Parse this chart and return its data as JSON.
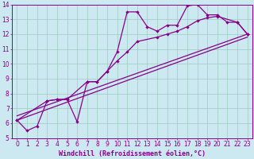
{
  "background_color": "#cce8f0",
  "plot_bg_color": "#cce8f0",
  "grid_color": "#99ccbb",
  "line_color": "#880088",
  "marker": "D",
  "markersize": 2.2,
  "linewidth": 0.9,
  "xlabel": "Windchill (Refroidissement éolien,°C)",
  "xlabel_fontsize": 6.0,
  "tick_fontsize": 5.5,
  "xlim": [
    -0.5,
    23.5
  ],
  "ylim": [
    5,
    14
  ],
  "yticks": [
    5,
    6,
    7,
    8,
    9,
    10,
    11,
    12,
    13,
    14
  ],
  "xticks": [
    0,
    1,
    2,
    3,
    4,
    5,
    6,
    7,
    8,
    9,
    10,
    11,
    12,
    13,
    14,
    15,
    16,
    17,
    18,
    19,
    20,
    21,
    22,
    23
  ],
  "series1_x": [
    0,
    1,
    2,
    3,
    4,
    5,
    6,
    7,
    8,
    9,
    10,
    11,
    12,
    13,
    14,
    15,
    16,
    17,
    18,
    19,
    20,
    21,
    22,
    23
  ],
  "series1_y": [
    6.2,
    5.5,
    5.8,
    7.5,
    7.6,
    7.6,
    6.1,
    8.8,
    8.8,
    9.5,
    10.8,
    13.5,
    13.5,
    12.5,
    12.2,
    12.6,
    12.6,
    13.9,
    14.0,
    13.3,
    13.3,
    12.8,
    12.8,
    12.0
  ],
  "series2_x": [
    0,
    3,
    4,
    5,
    7,
    8,
    9,
    10,
    11,
    12,
    14,
    15,
    16,
    17,
    18,
    19,
    20,
    22,
    23
  ],
  "series2_y": [
    6.2,
    7.5,
    7.6,
    7.6,
    8.8,
    8.8,
    9.5,
    10.2,
    10.8,
    11.5,
    11.8,
    12.0,
    12.2,
    12.5,
    12.9,
    13.1,
    13.2,
    12.8,
    12.0
  ],
  "series3_x": [
    0,
    23
  ],
  "series3_y": [
    6.2,
    11.8
  ],
  "series4_x": [
    0,
    23
  ],
  "series4_y": [
    6.5,
    12.0
  ]
}
